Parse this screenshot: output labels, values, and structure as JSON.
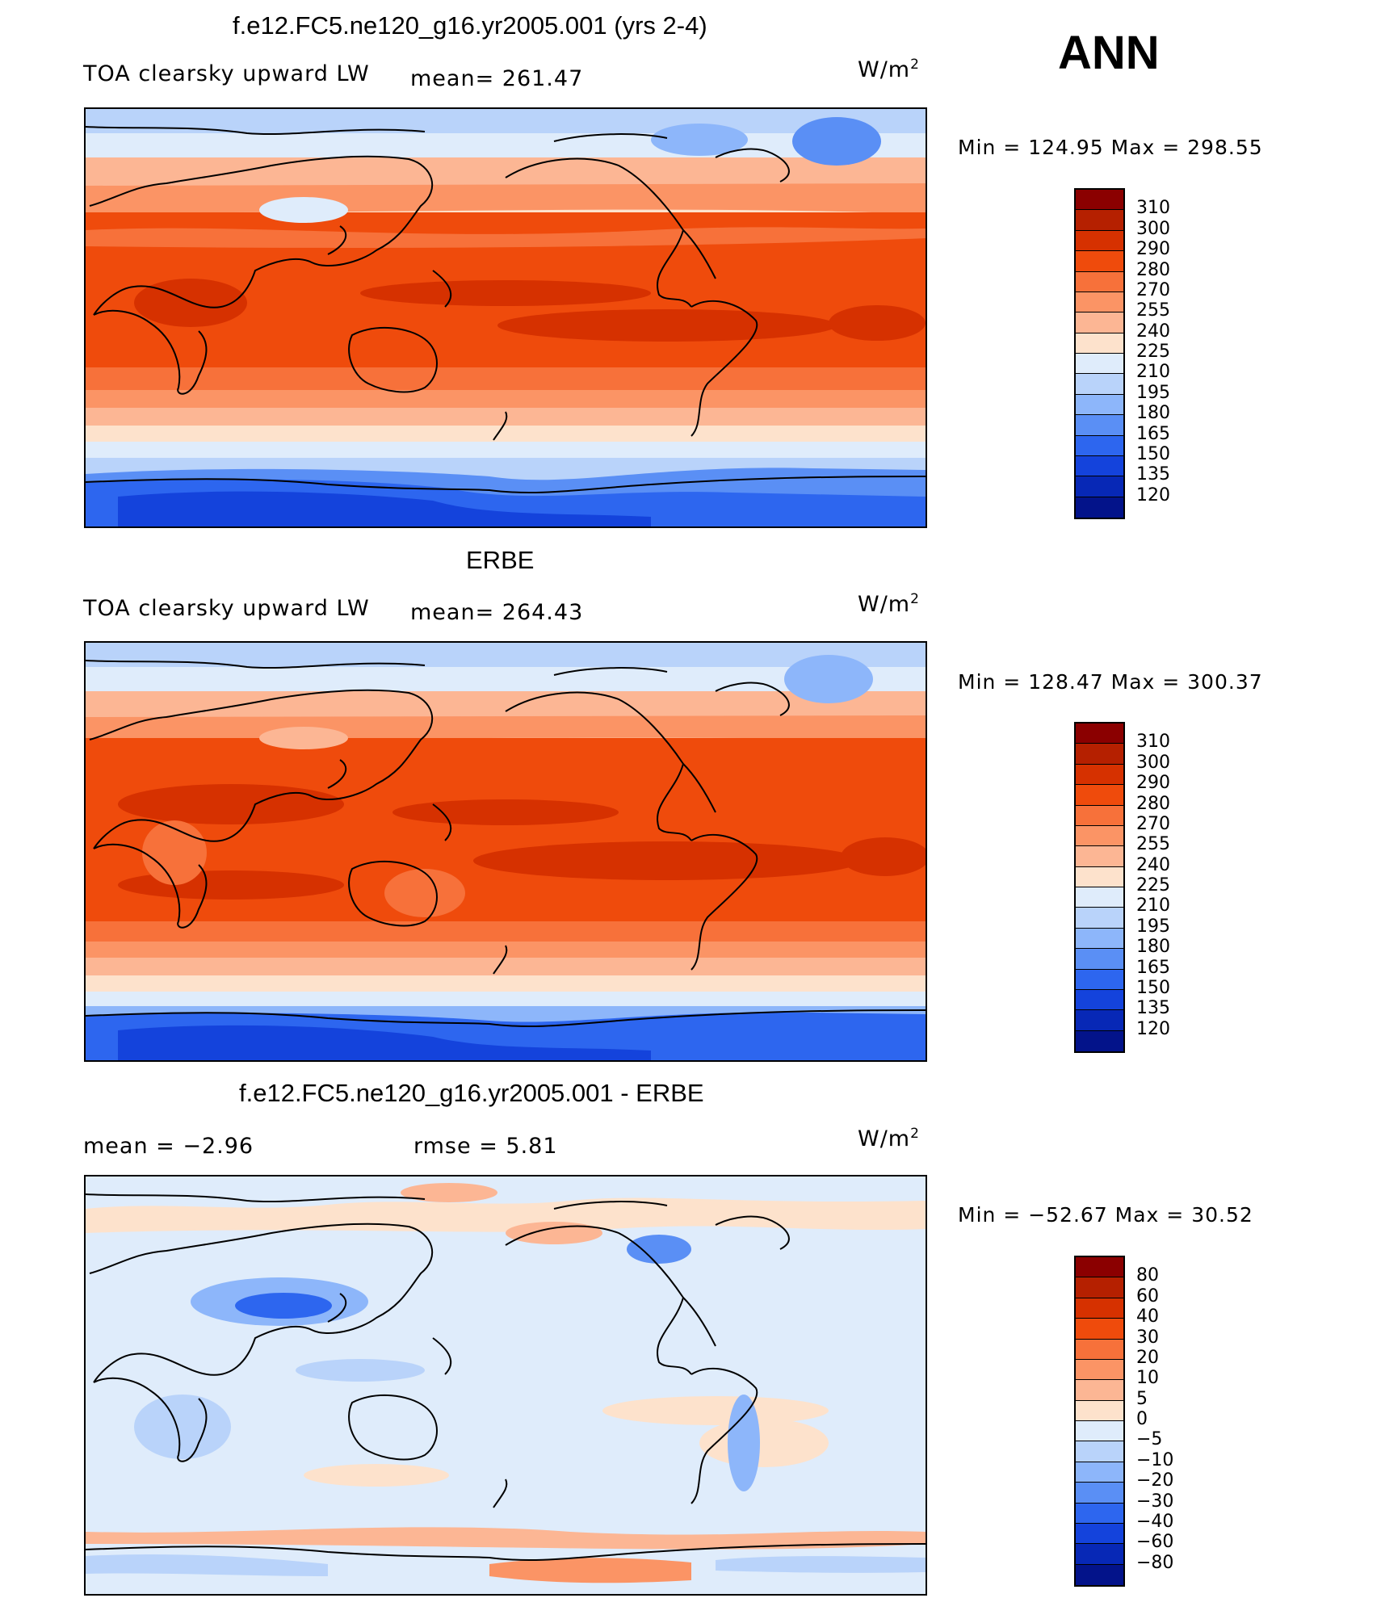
{
  "season": "ANN",
  "units": "W/m",
  "units_sup": "2",
  "panels": {
    "model": {
      "title": "f.e12.FC5.ne120_g16.yr2005.001 (yrs 2-4)",
      "variable": "TOA clearsky upward LW",
      "mean": "mean= 261.47",
      "minmax": "Min  =  124.95  Max  =  298.55"
    },
    "obs": {
      "title": "ERBE",
      "variable": "TOA clearsky upward LW",
      "mean": "mean= 264.43",
      "minmax": "Min  =  128.47  Max  =  300.37"
    },
    "diff": {
      "title": "f.e12.FC5.ne120_g16.yr2005.001 - ERBE",
      "mean": "mean  =     −2.96",
      "rmse": "rmse  =     5.81",
      "minmax": "Min  =  −52.67  Max  =    30.52"
    }
  },
  "colorbar_abs": {
    "labels": [
      "310",
      "300",
      "290",
      "280",
      "270",
      "255",
      "240",
      "225",
      "210",
      "195",
      "180",
      "165",
      "150",
      "135",
      "120"
    ],
    "colors": [
      "#8b0000",
      "#b52000",
      "#d63100",
      "#ef4b0c",
      "#f7713a",
      "#fb9465",
      "#fcb694",
      "#fde2cc",
      "#dfecfb",
      "#b9d3fa",
      "#8db6fa",
      "#5a8ff5",
      "#2d66ef",
      "#1443dc",
      "#0728b6",
      "#03138a"
    ]
  },
  "colorbar_diff": {
    "labels": [
      "80",
      "60",
      "40",
      "30",
      "20",
      "10",
      "5",
      "0",
      "−5",
      "−10",
      "−20",
      "−30",
      "−40",
      "−60",
      "−80"
    ],
    "colors": [
      "#8b0000",
      "#b52000",
      "#d63100",
      "#ef4b0c",
      "#f7713a",
      "#fb9465",
      "#fcb694",
      "#fde2cc",
      "#dfecfb",
      "#b9d3fa",
      "#8db6fa",
      "#5a8ff5",
      "#2d66ef",
      "#1443dc",
      "#0728b6",
      "#03138a"
    ]
  }
}
